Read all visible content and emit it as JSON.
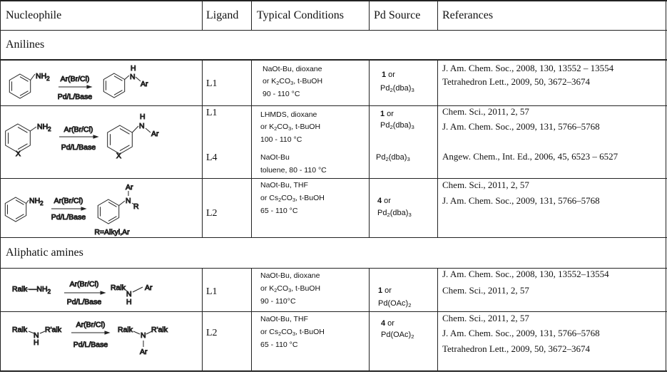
{
  "header": {
    "nucleophile": "Nucleophile",
    "ligand": "Ligand",
    "conditions": "Typical Conditions",
    "pd_source": "Pd Source",
    "references": "Referances"
  },
  "sections": {
    "anilines": "Anilines",
    "aliphatic": "Aliphatic amines"
  },
  "scheme": {
    "reagent": "Ar(Br/Cl)",
    "catalyst": "Pd/L/Base",
    "nh2": "NH2",
    "n": "N",
    "h": "H",
    "ar": "Ar",
    "x": "X",
    "r": "R",
    "r_note": "R=Alkyl,Ar",
    "ralk_nh2": "Ralk —NH2",
    "ralk": "Ralk",
    "r_alk": "R'alk"
  },
  "rows": [
    {
      "ligand": "L1",
      "conditions": [
        "NaOt-Bu, dioxane",
        "or K2CO3, t-BuOH",
        "90 - 110 °C"
      ],
      "pd": [
        "1 or",
        "Pd2(dba)3"
      ],
      "refs": [
        "J. Am. Chem. Soc., 2008, 130, 13552 – 13554",
        "Tetrahedron Lett., 2009, 50, 3672–3674"
      ]
    },
    {
      "ligand": "L1",
      "conditions": [
        "LHMDS, dioxane",
        "or K2CO3, t-BuOH",
        "100 - 110 °C"
      ],
      "pd": [
        "1 or",
        "Pd2(dba)3"
      ],
      "refs": [
        "Chem. Sci., 2011, 2, 57",
        "J. Am. Chem. Soc., 2009, 131, 5766–5768"
      ],
      "ligand_b": "L4",
      "conditions_b": [
        "NaOt-Bu",
        "toluene, 80 - 110 °C"
      ],
      "pd_b": "Pd2(dba)3",
      "refs_b": "Angew. Chem., Int. Ed., 2006, 45, 6523 – 6527"
    },
    {
      "ligand": "L2",
      "conditions": [
        "NaOt-Bu, THF",
        "or Cs2CO3, t-BuOH",
        "65 - 110 °C"
      ],
      "pd": [
        "4 or",
        "Pd2(dba)3"
      ],
      "refs": [
        "Chem. Sci., 2011, 2, 57",
        "J. Am. Chem. Soc., 2009, 131, 5766–5768"
      ]
    },
    {
      "ligand": "L1",
      "conditions": [
        "NaOt-Bu, dioxane",
        "or K2CO3, t-BuOH",
        "90 - 110°C"
      ],
      "pd": [
        "1 or",
        "Pd(OAc)2"
      ],
      "refs": [
        "J. Am. Chem. Soc., 2008, 130, 13552–13554",
        "Chem. Sci., 2011, 2, 57"
      ]
    },
    {
      "ligand": "L2",
      "conditions": [
        "NaOt-Bu, THF",
        "or Cs2CO3, t-BuOH",
        "65 - 110 °C"
      ],
      "pd": [
        "4 or",
        "Pd(OAc)2"
      ],
      "refs": [
        "Chem. Sci., 2011, 2, 57",
        "J. Am. Chem. Soc., 2009, 131, 5766–5768",
        "Tetrahedron Lett., 2009, 50, 3672–3674"
      ]
    }
  ]
}
